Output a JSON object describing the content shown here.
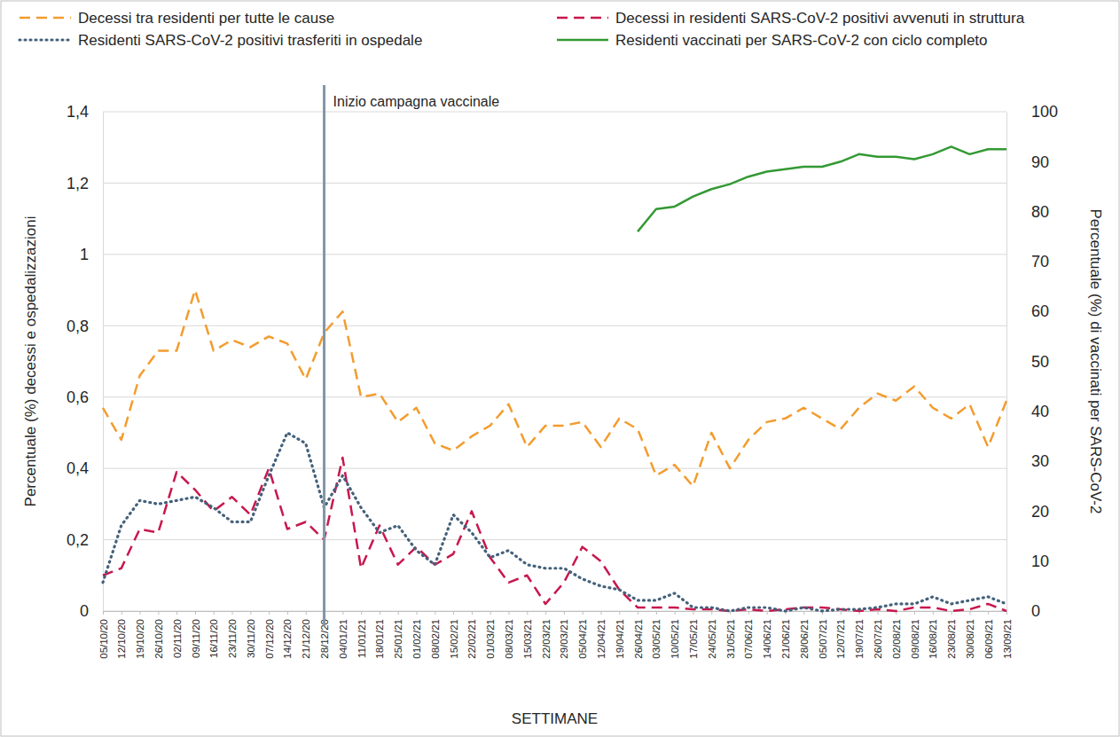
{
  "chart_data": {
    "type": "line",
    "x_label": "SETTIMANE",
    "y_label": "Percentuale (%) decessi e ospedalizzazioni",
    "y2_label": "Percentuale (%) di vaccinati per SARS-CoV-2",
    "categories": [
      "05/10/20",
      "12/10/20",
      "19/10/20",
      "26/10/20",
      "02/11/20",
      "09/11/20",
      "16/11/20",
      "23/11/20",
      "30/11/20",
      "07/12/20",
      "14/12/20",
      "21/12/20",
      "28/12/20",
      "04/01/21",
      "11/01/21",
      "18/01/21",
      "25/01/21",
      "01/02/21",
      "08/02/21",
      "15/02/21",
      "22/02/21",
      "01/03/21",
      "08/03/21",
      "15/03/21",
      "22/03/21",
      "29/03/21",
      "05/04/21",
      "12/04/21",
      "19/04/21",
      "26/04/21",
      "03/05/21",
      "10/05/21",
      "17/05/21",
      "24/05/21",
      "31/05/21",
      "07/06/21",
      "14/06/21",
      "21/06/21",
      "28/06/21",
      "05/07/21",
      "12/07/21",
      "19/07/21",
      "26/07/21",
      "02/08/21",
      "09/08/21",
      "16/08/21",
      "23/08/21",
      "30/08/21",
      "06/09/21",
      "13/09/21"
    ],
    "series": [
      {
        "name": "Decessi tra residenti per tutte le cause",
        "color": "#f39c2e",
        "line_style": "dashed",
        "values": [
          0.57,
          0.48,
          0.66,
          0.73,
          0.73,
          0.9,
          0.73,
          0.76,
          0.74,
          0.77,
          0.75,
          0.65,
          0.78,
          0.84,
          0.6,
          0.61,
          0.53,
          0.57,
          0.47,
          0.45,
          0.49,
          0.52,
          0.58,
          0.46,
          0.52,
          0.52,
          0.53,
          0.46,
          0.54,
          0.51,
          0.38,
          0.41,
          0.35,
          0.5,
          0.4,
          0.48,
          0.53,
          0.54,
          0.57,
          0.54,
          0.51,
          0.57,
          0.61,
          0.59,
          0.63,
          0.57,
          0.54,
          0.58,
          0.46,
          0.59
        ]
      },
      {
        "name": "Decessi in residenti SARS-CoV-2 positivi avvenuti in struttura",
        "color": "#c8174d",
        "line_style": "dashed",
        "values": [
          0.1,
          0.12,
          0.23,
          0.22,
          0.39,
          0.34,
          0.28,
          0.32,
          0.27,
          0.4,
          0.23,
          0.25,
          0.2,
          0.43,
          0.12,
          0.24,
          0.13,
          0.18,
          0.13,
          0.16,
          0.28,
          0.15,
          0.08,
          0.1,
          0.02,
          0.08,
          0.18,
          0.14,
          0.06,
          0.01,
          0.01,
          0.01,
          0.005,
          0.005,
          0.0,
          0.005,
          0.0,
          0.005,
          0.01,
          0.01,
          0.005,
          0.0,
          0.005,
          0.0,
          0.01,
          0.01,
          0.0,
          0.005,
          0.02,
          0.0
        ]
      },
      {
        "name": "Residenti SARS-CoV-2 positivi trasferiti in ospedale",
        "color": "#44617b",
        "line_style": "dotted",
        "values": [
          0.08,
          0.24,
          0.31,
          0.3,
          0.31,
          0.32,
          0.29,
          0.25,
          0.25,
          0.38,
          0.5,
          0.47,
          0.29,
          0.38,
          0.29,
          0.22,
          0.24,
          0.17,
          0.13,
          0.27,
          0.22,
          0.15,
          0.17,
          0.13,
          0.12,
          0.12,
          0.09,
          0.07,
          0.06,
          0.03,
          0.03,
          0.05,
          0.01,
          0.01,
          0.0,
          0.01,
          0.01,
          0.0,
          0.01,
          0.0,
          0.005,
          0.005,
          0.01,
          0.02,
          0.02,
          0.04,
          0.02,
          0.03,
          0.04,
          0.02
        ]
      },
      {
        "name": "Residenti vaccinati per SARS-CoV-2 con ciclo completo",
        "color": "#339933",
        "line_style": "solid",
        "axis": "y2",
        "values": [
          null,
          null,
          null,
          null,
          null,
          null,
          null,
          null,
          null,
          null,
          null,
          null,
          null,
          null,
          null,
          null,
          null,
          null,
          null,
          null,
          null,
          null,
          null,
          null,
          null,
          null,
          null,
          null,
          null,
          76,
          80.5,
          81,
          83,
          84.5,
          85.5,
          87,
          88,
          88.5,
          89,
          89,
          90,
          91.5,
          91,
          91,
          90.5,
          91.5,
          93,
          91.5,
          92.5,
          92.5
        ]
      }
    ],
    "ylim": [
      0,
      1.4
    ],
    "yticks": [
      0,
      {
        "value": 0.2,
        "label": "0,2"
      },
      {
        "value": 0.4,
        "label": "0,4"
      },
      {
        "value": 0.6,
        "label": "0,6"
      },
      {
        "value": 0.8,
        "label": "0,8"
      },
      1,
      {
        "value": 1.2,
        "label": "1,2"
      },
      {
        "value": 1.4,
        "label": "1,4"
      }
    ],
    "y2lim": [
      0,
      100
    ],
    "y2ticks": [
      0,
      10,
      20,
      30,
      40,
      50,
      60,
      70,
      80,
      90,
      100
    ],
    "grid": true,
    "legend": "top",
    "annotations": [
      {
        "text": "Inizio campagna vaccinale",
        "x": "28/12/20"
      }
    ]
  }
}
